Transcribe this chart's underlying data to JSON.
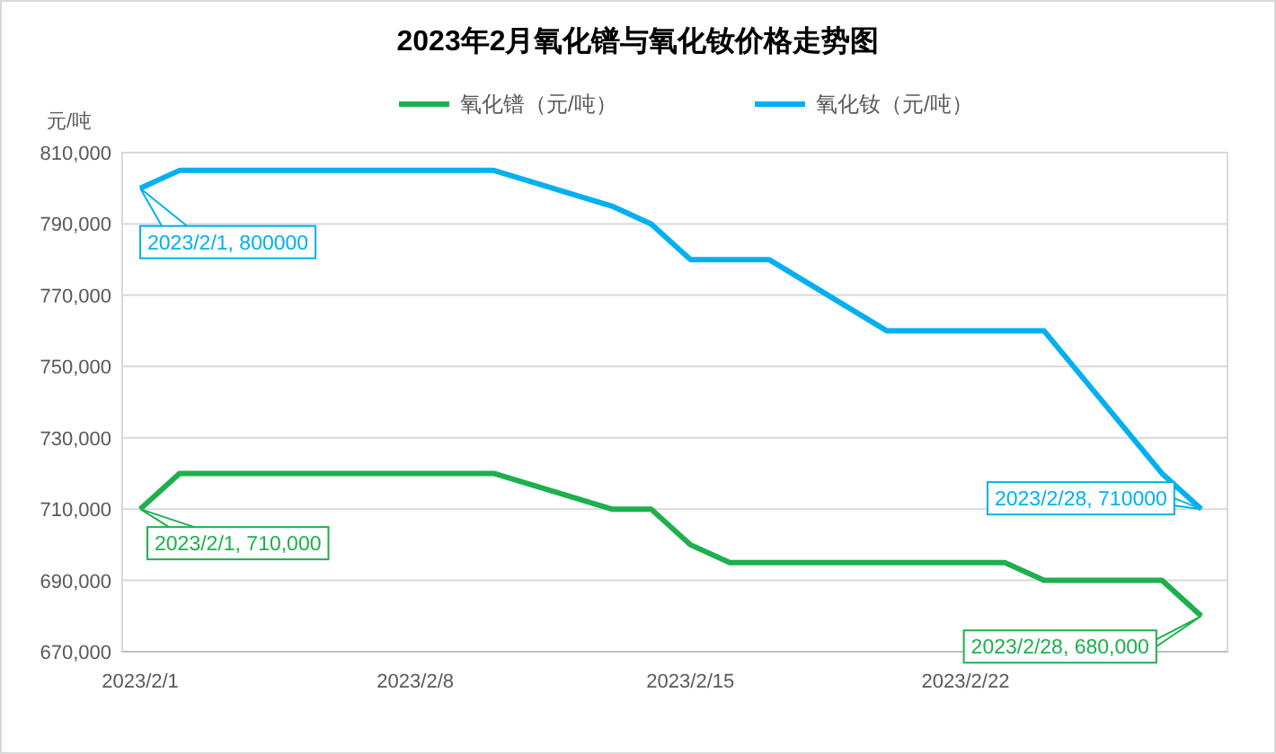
{
  "chart_data": {
    "type": "line",
    "title": "2023年2月氧化镨与氧化钕价格走势图",
    "ylabel": "元/吨",
    "xlim": [
      "2023-01-31T13:00",
      "2023-02-28T16:00"
    ],
    "xticks": [
      {
        "value": "2023-02-01",
        "label": "2023/2/1"
      },
      {
        "value": "2023-02-08",
        "label": "2023/2/8"
      },
      {
        "value": "2023-02-15",
        "label": "2023/2/15"
      },
      {
        "value": "2023-02-22",
        "label": "2023/2/22"
      }
    ],
    "ylim": [
      670000,
      810000
    ],
    "yticks": [
      {
        "value": 670000,
        "label": "670,000"
      },
      {
        "value": 690000,
        "label": "690,000"
      },
      {
        "value": 710000,
        "label": "710,000"
      },
      {
        "value": 730000,
        "label": "730,000"
      },
      {
        "value": 750000,
        "label": "750,000"
      },
      {
        "value": 770000,
        "label": "770,000"
      },
      {
        "value": 790000,
        "label": "790,000"
      },
      {
        "value": 810000,
        "label": "810,000"
      }
    ],
    "grid": "y",
    "legend": "top",
    "marker": "none",
    "line_style": "solid",
    "series": [
      {
        "name": "氧化镨（元/吨）",
        "color": "#1db04c",
        "x": [
          "2023-02-01",
          "2023-02-02",
          "2023-02-10",
          "2023-02-13",
          "2023-02-14",
          "2023-02-15",
          "2023-02-16",
          "2023-02-23",
          "2023-02-24",
          "2023-02-27",
          "2023-02-28"
        ],
        "values": [
          710000,
          720000,
          720000,
          710000,
          710000,
          700000,
          695000,
          695000,
          690000,
          690000,
          680000
        ]
      },
      {
        "name": "氧化钕（元/吨）",
        "color": "#00b0f0",
        "x": [
          "2023-02-01",
          "2023-02-02",
          "2023-02-10",
          "2023-02-13",
          "2023-02-14",
          "2023-02-15",
          "2023-02-17",
          "2023-02-20",
          "2023-02-24",
          "2023-02-27",
          "2023-02-28"
        ],
        "values": [
          800000,
          805000,
          805000,
          795000,
          790000,
          780000,
          780000,
          760000,
          760000,
          720000,
          710000
        ]
      }
    ],
    "annotations": [
      {
        "text": "2023/2/1, 800000",
        "x": "2023-02-01",
        "y": 800000
      },
      {
        "text": "2023/2/1, 710,000",
        "x": "2023-02-01",
        "y": 710000
      },
      {
        "text": "2023/2/28, 710000",
        "x": "2023-02-28",
        "y": 710000
      },
      {
        "text": "2023/2/28, 680,000",
        "x": "2023-02-28",
        "y": 680000
      }
    ]
  }
}
